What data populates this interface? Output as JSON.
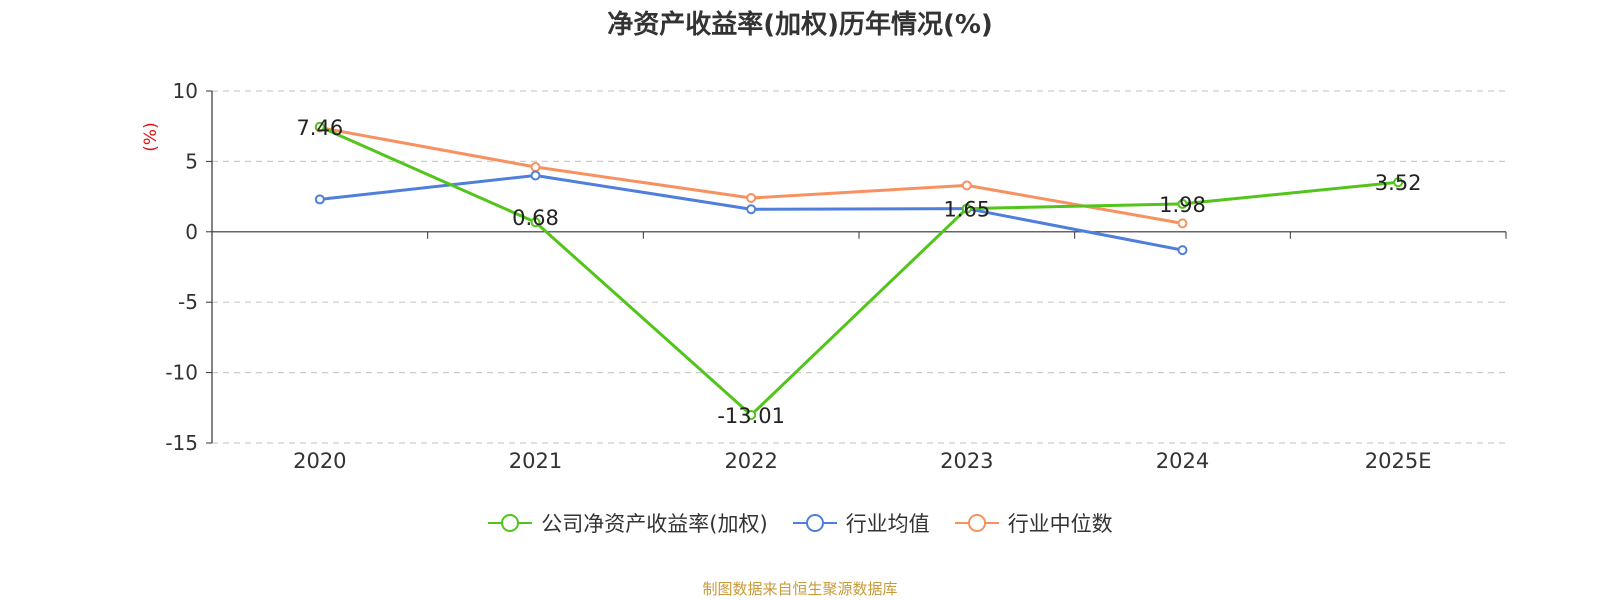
{
  "colors": {
    "company": "#52c41a",
    "avg": "#4f7fdb",
    "median": "#f79260",
    "source": "#c89a3a",
    "ylabel": "#e01010"
  },
  "source_text": "制图数据来自恒生聚源数据库",
  "chart_data": {
    "type": "line",
    "title": "净资产收益率(加权)历年情况(%)",
    "ylabel": "(%)",
    "xlabel": "",
    "categories": [
      "2020",
      "2021",
      "2022",
      "2023",
      "2024",
      "2025E"
    ],
    "ylim": [
      -15,
      10
    ],
    "yticks": [
      10,
      5,
      0,
      -5,
      -10,
      -15
    ],
    "grid": true,
    "legend_position": "bottom",
    "series": [
      {
        "name": "公司净资产收益率(加权)",
        "color_key": "company",
        "labels": true,
        "values": [
          7.46,
          0.68,
          -13.01,
          1.65,
          1.98,
          3.52
        ]
      },
      {
        "name": "行业均值",
        "color_key": "avg",
        "labels": false,
        "values": [
          2.3,
          4.0,
          1.6,
          1.65,
          -1.3,
          null
        ]
      },
      {
        "name": "行业中位数",
        "color_key": "median",
        "labels": false,
        "values": [
          7.4,
          4.6,
          2.4,
          3.3,
          0.6,
          null
        ]
      }
    ]
  }
}
